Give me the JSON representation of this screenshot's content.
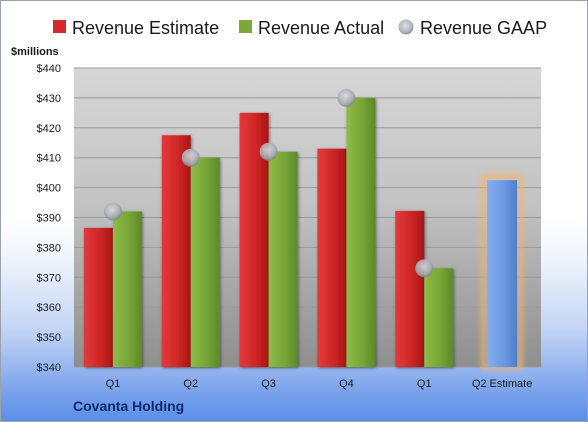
{
  "company": "Covanta Holding",
  "chart_data": {
    "type": "bar",
    "ylabel": "$millions",
    "ylim": [
      340,
      440
    ],
    "yticks": [
      "$340",
      "$350",
      "$360",
      "$370",
      "$380",
      "$390",
      "$400",
      "$410",
      "$420",
      "$430",
      "$440"
    ],
    "categories": [
      "Q1",
      "Q2",
      "Q3",
      "Q4",
      "Q1",
      "Q2 Estimate"
    ],
    "series": [
      {
        "name": "Revenue Estimate",
        "type": "bar",
        "color": "#d62a2a",
        "values": [
          386.5,
          417.5,
          425,
          413,
          392.2,
          null
        ]
      },
      {
        "name": "Revenue Actual",
        "type": "bar",
        "color": "#7aa83a",
        "values": [
          392,
          410,
          412,
          430,
          373,
          null
        ]
      },
      {
        "name": "Revenue GAAP",
        "type": "marker",
        "color": "#b4b8c0",
        "values": [
          392,
          410,
          412,
          430,
          373,
          null
        ]
      }
    ],
    "estimate_bar": {
      "category": "Q2 Estimate",
      "value": 402.5,
      "color": "#6f9be0",
      "glow": "#f2b56b"
    },
    "grid": true,
    "legend": "top"
  }
}
